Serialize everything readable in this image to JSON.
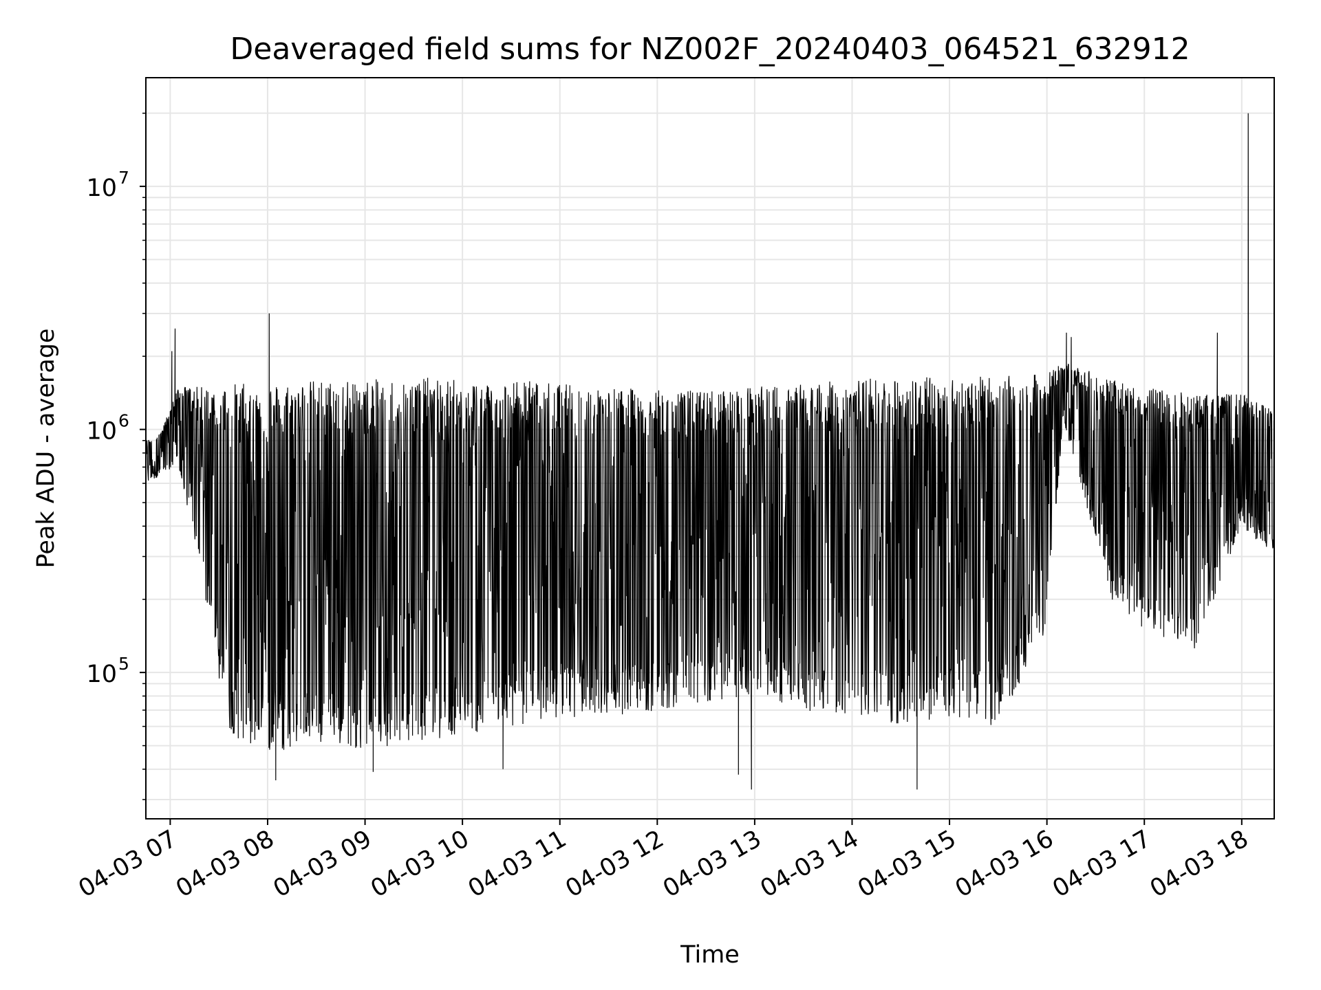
{
  "chart_data": {
    "type": "line",
    "title": "Deaveraged field sums for NZ002F_20240403_064521_632912",
    "xlabel": "Time",
    "ylabel": "Peak ADU - average",
    "y_scale": "log",
    "ylim": [
      25000,
      28000000
    ],
    "xlim": [
      "2024-04-03 06:45",
      "2024-04-03 18:20"
    ],
    "grid": true,
    "line_color": "#000000",
    "y_ticks": [
      {
        "base": "10",
        "exp": "5",
        "value": 100000
      },
      {
        "base": "10",
        "exp": "6",
        "value": 1000000
      },
      {
        "base": "10",
        "exp": "7",
        "value": 10000000
      }
    ],
    "x_ticks": [
      {
        "label": "04-03 07",
        "time": "2024-04-03 07:00"
      },
      {
        "label": "04-03 08",
        "time": "2024-04-03 08:00"
      },
      {
        "label": "04-03 09",
        "time": "2024-04-03 09:00"
      },
      {
        "label": "04-03 10",
        "time": "2024-04-03 10:00"
      },
      {
        "label": "04-03 11",
        "time": "2024-04-03 11:00"
      },
      {
        "label": "04-03 12",
        "time": "2024-04-03 12:00"
      },
      {
        "label": "04-03 13",
        "time": "2024-04-03 13:00"
      },
      {
        "label": "04-03 14",
        "time": "2024-04-03 14:00"
      },
      {
        "label": "04-03 15",
        "time": "2024-04-03 15:00"
      },
      {
        "label": "04-03 16",
        "time": "2024-04-03 16:00"
      },
      {
        "label": "04-03 17",
        "time": "2024-04-03 17:00"
      },
      {
        "label": "04-03 18",
        "time": "2024-04-03 18:00"
      }
    ],
    "series": [
      {
        "envelope": {
          "time": [
            "2024-04-03 06:45",
            "2024-04-03 06:55",
            "2024-04-03 07:05",
            "2024-04-03 07:15",
            "2024-04-03 07:25",
            "2024-04-03 07:35",
            "2024-04-03 07:45",
            "2024-04-03 08:00",
            "2024-04-03 08:30",
            "2024-04-03 09:00",
            "2024-04-03 09:30",
            "2024-04-03 10:00",
            "2024-04-03 10:30",
            "2024-04-03 11:00",
            "2024-04-03 11:30",
            "2024-04-03 12:00",
            "2024-04-03 12:30",
            "2024-04-03 13:00",
            "2024-04-03 13:30",
            "2024-04-03 14:00",
            "2024-04-03 14:30",
            "2024-04-03 15:00",
            "2024-04-03 15:30",
            "2024-04-03 16:00",
            "2024-04-03 16:10",
            "2024-04-03 16:20",
            "2024-04-03 16:40",
            "2024-04-03 17:00",
            "2024-04-03 17:30",
            "2024-04-03 18:00",
            "2024-04-03 18:20"
          ],
          "low": [
            600000,
            650000,
            700000,
            350000,
            150000,
            60000,
            50000,
            47000,
            50000,
            48000,
            52000,
            55000,
            60000,
            65000,
            65000,
            70000,
            75000,
            80000,
            70000,
            65000,
            60000,
            65000,
            60000,
            150000,
            1100000,
            600000,
            200000,
            150000,
            120000,
            400000,
            300000
          ],
          "high": [
            900000,
            1000000,
            1500000,
            1500000,
            1500000,
            1550000,
            1550000,
            1550000,
            1600000,
            1600000,
            1650000,
            1600000,
            1600000,
            1550000,
            1500000,
            1450000,
            1450000,
            1500000,
            1550000,
            1600000,
            1650000,
            1650000,
            1650000,
            1700000,
            1900000,
            1800000,
            1600000,
            1500000,
            1400000,
            1400000,
            1200000
          ]
        },
        "spikes": [
          {
            "time": "2024-04-03 07:03",
            "value": 2600000
          },
          {
            "time": "2024-04-03 07:01",
            "value": 2100000
          },
          {
            "time": "2024-04-03 08:01",
            "value": 3000000
          },
          {
            "time": "2024-04-03 16:12",
            "value": 2500000
          },
          {
            "time": "2024-04-03 16:15",
            "value": 2400000
          },
          {
            "time": "2024-04-03 17:45",
            "value": 2500000
          },
          {
            "time": "2024-04-03 18:04",
            "value": 20000000
          }
        ],
        "dips": [
          {
            "time": "2024-04-03 08:05",
            "value": 36000
          },
          {
            "time": "2024-04-03 12:58",
            "value": 33000
          },
          {
            "time": "2024-04-03 14:40",
            "value": 33000
          },
          {
            "time": "2024-04-03 12:50",
            "value": 38000
          },
          {
            "time": "2024-04-03 09:05",
            "value": 39000
          },
          {
            "time": "2024-04-03 10:25",
            "value": 40000
          }
        ]
      }
    ]
  }
}
